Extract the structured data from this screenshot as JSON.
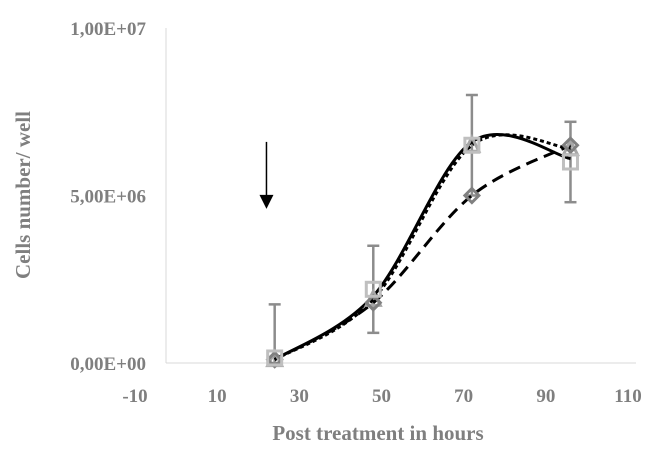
{
  "chart_data": {
    "type": "line",
    "title": "",
    "xlabel": "Post treatment in hours",
    "ylabel": "Cells number/ well",
    "xlim": [
      -10,
      110
    ],
    "ylim": [
      0,
      10000000
    ],
    "x_ticks": [
      -10,
      10,
      30,
      50,
      70,
      90,
      110
    ],
    "x_tick_labels": [
      "-10",
      "10",
      "30",
      "50",
      "70",
      "90",
      "110"
    ],
    "y_ticks": [
      0,
      5000000,
      10000000
    ],
    "y_tick_labels": [
      "0,00E+00",
      "5,00E+06",
      "1,00E+07"
    ],
    "grid": false,
    "legend": "none",
    "arrow_annotation": {
      "x": 22,
      "y_from": 6600000,
      "y_to": 4600000
    },
    "series": [
      {
        "style": "solid",
        "marker": "none",
        "color": "#000000",
        "x": [
          24,
          48,
          72,
          96
        ],
        "y": [
          100000,
          2000000,
          6600000,
          6100000
        ]
      },
      {
        "style": "dotted",
        "marker": "triangle",
        "color": "#000000",
        "marker_color": "#a6a6a6",
        "x": [
          24,
          48,
          72,
          96
        ],
        "y": [
          100000,
          1900000,
          6500000,
          6400000
        ]
      },
      {
        "style": "dashed",
        "marker": "diamond",
        "color": "#000000",
        "marker_color": "#808080",
        "x": [
          24,
          48,
          72,
          96
        ],
        "y": [
          100000,
          1800000,
          5000000,
          6500000
        ]
      },
      {
        "style": "none",
        "marker": "square",
        "color": "#000000",
        "marker_color": "#bfbfbf",
        "x": [
          24,
          48,
          72,
          96
        ],
        "y": [
          150000,
          2200000,
          6500000,
          6000000
        ],
        "error": [
          1600000,
          1300000,
          1500000,
          1200000
        ]
      }
    ]
  }
}
